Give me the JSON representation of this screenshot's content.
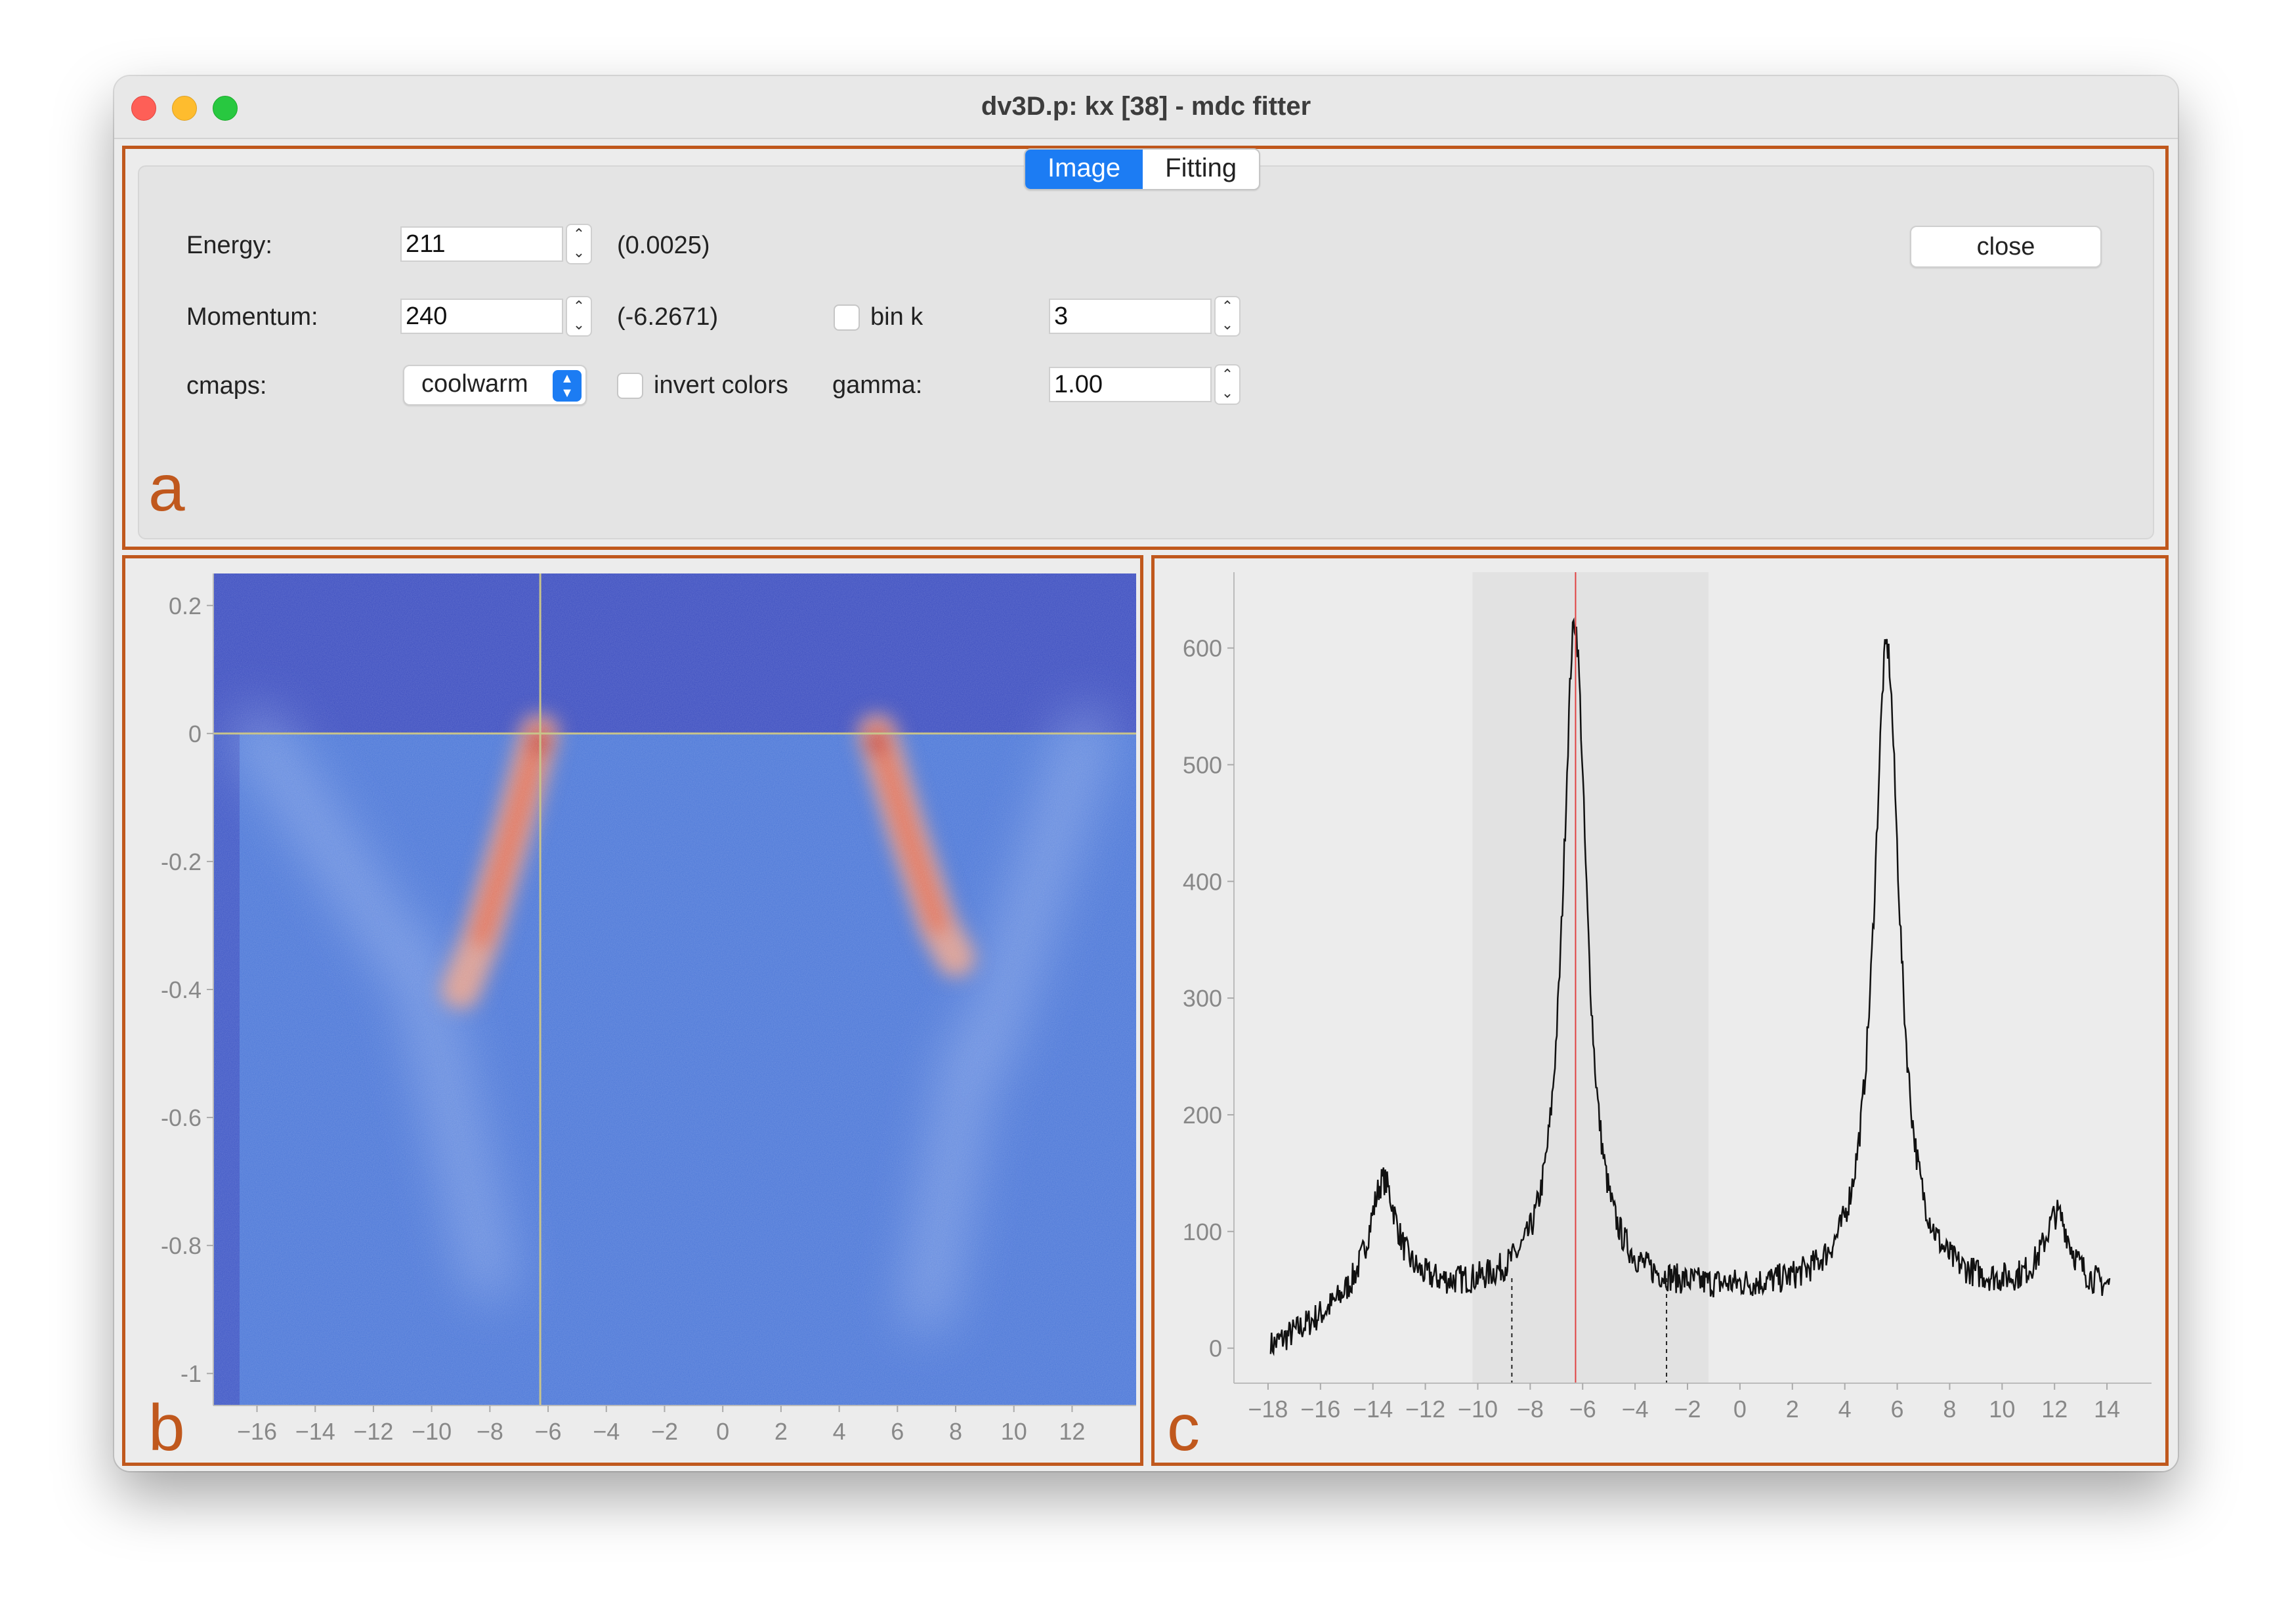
{
  "window": {
    "title": "dv3D.p: kx [38] - mdc fitter"
  },
  "tabs": [
    {
      "label": "Image",
      "selected": true
    },
    {
      "label": "Fitting",
      "selected": false
    }
  ],
  "controls": {
    "energy": {
      "label": "Energy:",
      "value": "211",
      "readout": "(0.0025)"
    },
    "momentum": {
      "label": "Momentum:",
      "value": "240",
      "readout": "(-6.2671)"
    },
    "bin_k": {
      "label": "bin k",
      "checked": false,
      "value": "3"
    },
    "cmaps": {
      "label": "cmaps:",
      "value": "coolwarm"
    },
    "invert_colors": {
      "label": "invert colors",
      "checked": false
    },
    "gamma": {
      "label": "gamma:",
      "value": "1.00"
    },
    "close_label": "close"
  },
  "panels": {
    "a": "a",
    "b": "b",
    "c": "c"
  },
  "colors": {
    "accent": "#1c7cf3",
    "panel_border": "#c0581d",
    "cursor_line": "#c9c48a",
    "mdc_marker": "#e04040"
  },
  "chart_data": [
    {
      "type": "heatmap",
      "colormap": "coolwarm",
      "x_ticks": [
        "-16",
        "-14",
        "-12",
        "-10",
        "-8",
        "-6",
        "-4",
        "-2",
        "0",
        "2",
        "4",
        "6",
        "8",
        "10",
        "12"
      ],
      "y_ticks": [
        "0.2",
        "0",
        "-0.2",
        "-0.4",
        "-0.6",
        "-0.8",
        "-1"
      ],
      "xlim": [
        -17.5,
        14.2
      ],
      "ylim": [
        -1.05,
        0.25
      ],
      "cursor": {
        "x": -6.27,
        "y": 0.0
      },
      "bands": [
        {
          "name": "",
          "points": [
            [
              -6.3,
              0.0
            ],
            [
              -7.2,
              -0.15
            ],
            [
              -8.3,
              -0.32
            ],
            [
              -9.0,
              -0.4
            ]
          ]
        },
        {
          "name": "",
          "points": [
            [
              5.3,
              0.0
            ],
            [
              6.3,
              -0.15
            ],
            [
              7.4,
              -0.3
            ],
            [
              8.0,
              -0.35
            ]
          ]
        }
      ]
    },
    {
      "type": "line",
      "x_ticks": [
        "-18",
        "-16",
        "-14",
        "-12",
        "-10",
        "-8",
        "-6",
        "-4",
        "-2",
        "0",
        "2",
        "4",
        "6",
        "8",
        "10",
        "12",
        "14"
      ],
      "y_ticks": [
        "0",
        "100",
        "200",
        "300",
        "400",
        "500",
        "600"
      ],
      "xlim": [
        -19.3,
        15.7
      ],
      "ylim": [
        -30,
        665
      ],
      "fit_region": [
        -10.2,
        -1.2
      ],
      "marker_x": -6.27,
      "dashed_x": [
        -8.7,
        -2.8
      ],
      "peaks": [
        {
          "x": -13.6,
          "y": 140,
          "width": 0.8
        },
        {
          "x": -6.3,
          "y": 620,
          "width": 0.7
        },
        {
          "x": 5.6,
          "y": 600,
          "width": 0.75
        },
        {
          "x": 12.1,
          "y": 110,
          "width": 0.8
        }
      ],
      "baseline": 45,
      "x_range": [
        -17.9,
        14.1
      ]
    }
  ]
}
